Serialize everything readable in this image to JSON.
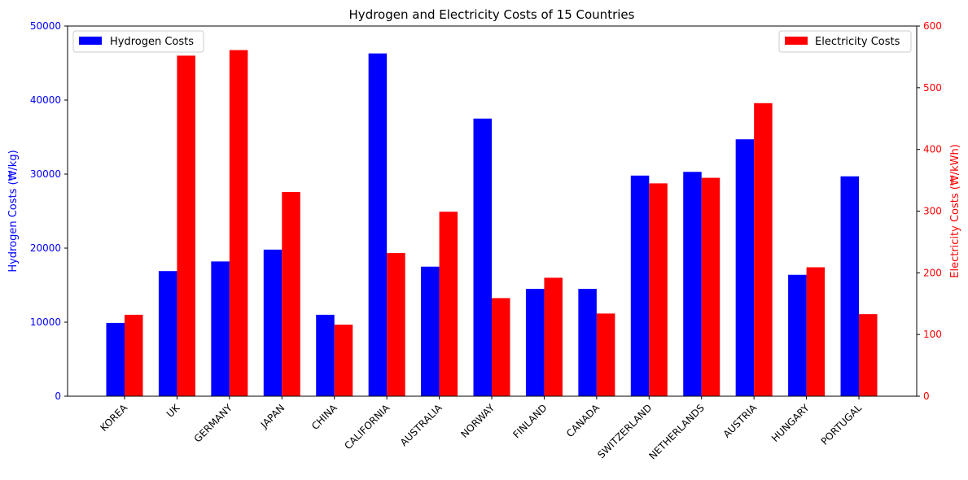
{
  "chart_data": {
    "type": "bar",
    "title": "Hydrogen and Electricity Costs of 15 Countries",
    "categories": [
      "KOREA",
      "UK",
      "GERMANY",
      "JAPAN",
      "CHINA",
      "CALIFORNIA",
      "AUSTRALIA",
      "NORWAY",
      "FINLAND",
      "CANADA",
      "SWITZERLAND",
      "NETHERLANDS",
      "AUSTRIA",
      "HUNGARY",
      "PORTUGAL"
    ],
    "series": [
      {
        "name": "Hydrogen Costs",
        "axis": "left",
        "color": "#0000ff",
        "values": [
          9900,
          16900,
          18200,
          19800,
          11000,
          46300,
          17500,
          37500,
          14500,
          14500,
          29800,
          30300,
          34700,
          16400,
          29700
        ]
      },
      {
        "name": "Electricity Costs",
        "axis": "right",
        "color": "#ff0000",
        "values": [
          132,
          552,
          561,
          331,
          116,
          232,
          299,
          159,
          192,
          134,
          345,
          354,
          475,
          209,
          133
        ]
      }
    ],
    "y_left": {
      "label": "Hydrogen Costs (₩/kg)",
      "ylim": [
        0,
        50000
      ],
      "ticks": [
        "0",
        "10000",
        "20000",
        "30000",
        "40000",
        "50000"
      ],
      "color": "#0000ff"
    },
    "y_right": {
      "label": "Electricity Costs (₩/kWh)",
      "ylim": [
        0,
        600
      ],
      "ticks": [
        "0",
        "100",
        "200",
        "300",
        "400",
        "500",
        "600"
      ],
      "color": "#ff0000"
    },
    "legends": [
      {
        "series": "Hydrogen Costs",
        "placement": "top-left"
      },
      {
        "series": "Electricity Costs",
        "placement": "top-right"
      }
    ],
    "grid": false
  }
}
